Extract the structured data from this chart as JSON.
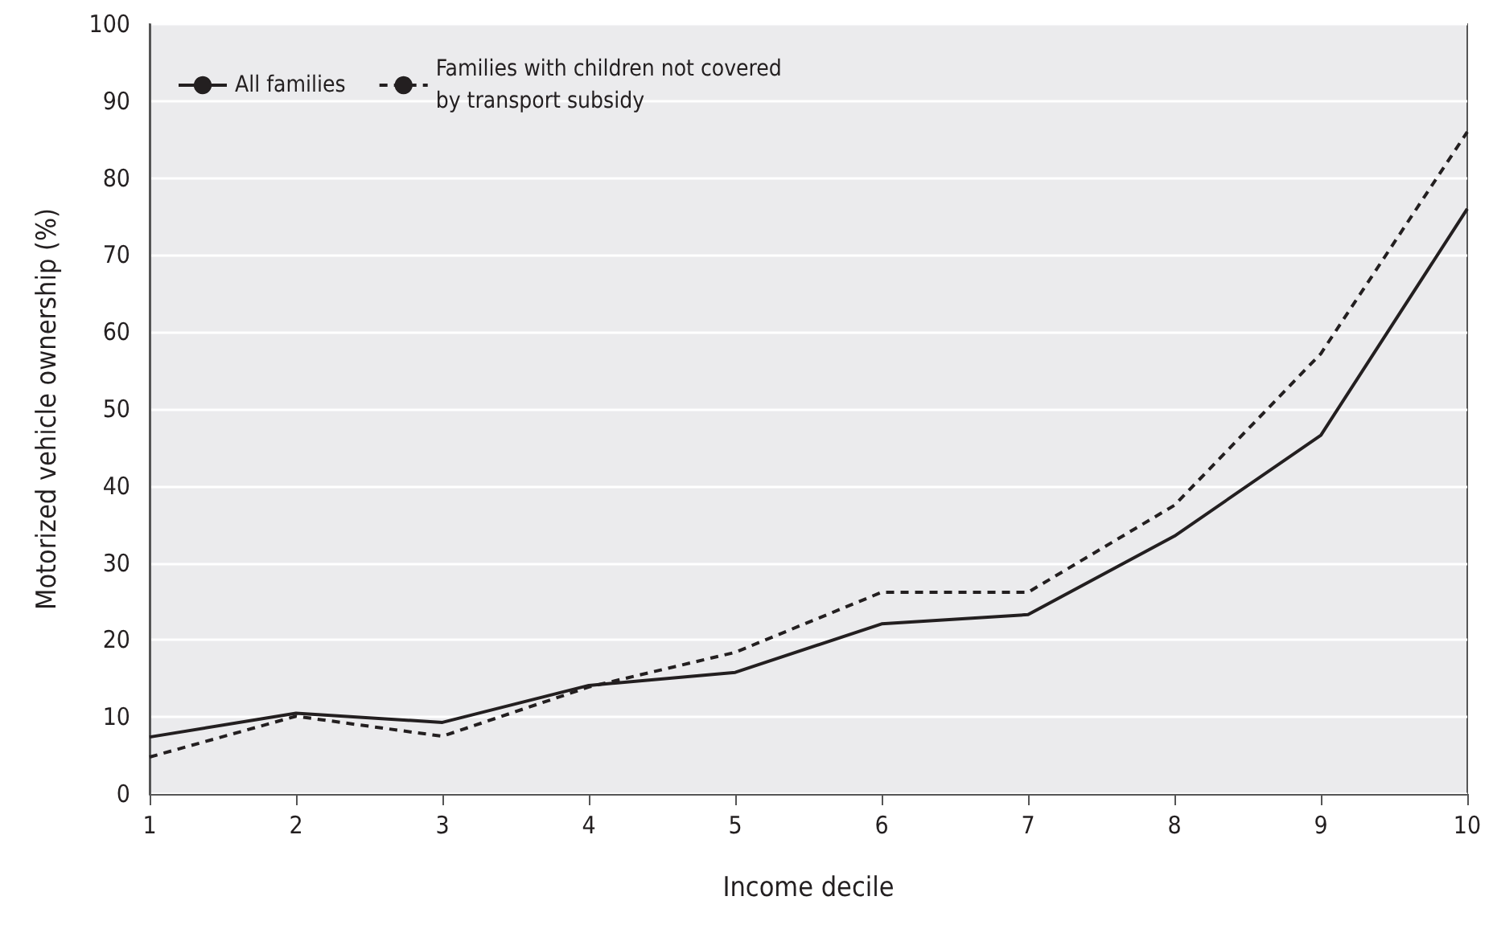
{
  "chart_data": {
    "type": "line",
    "xlabel": "Income decile",
    "ylabel": "Motorized vehicle ownership (%)",
    "x": [
      1,
      2,
      3,
      4,
      5,
      6,
      7,
      8,
      9,
      10
    ],
    "series": [
      {
        "name": "All families",
        "color": "#231f20",
        "line_style": "solid",
        "values": [
          7.4,
          10.5,
          9.3,
          14.1,
          15.8,
          22.1,
          23.3,
          33.5,
          46.6,
          76
        ]
      },
      {
        "name": "Families with children not covered\nby transport subsidy",
        "color": "#231f20",
        "line_style": "dashed",
        "values": [
          4.8,
          10.1,
          7.5,
          13.9,
          18.4,
          26.2,
          26.2,
          37.5,
          57.2,
          86
        ]
      }
    ],
    "xlim": [
      1,
      10
    ],
    "xticks": [
      1,
      2,
      3,
      4,
      5,
      6,
      7,
      8,
      9,
      10
    ],
    "ylim": [
      0,
      100
    ],
    "yticks": [
      0,
      10,
      20,
      30,
      40,
      50,
      60,
      70,
      80,
      90,
      100
    ],
    "grid": "y",
    "legend": "top left",
    "marker": "none"
  }
}
